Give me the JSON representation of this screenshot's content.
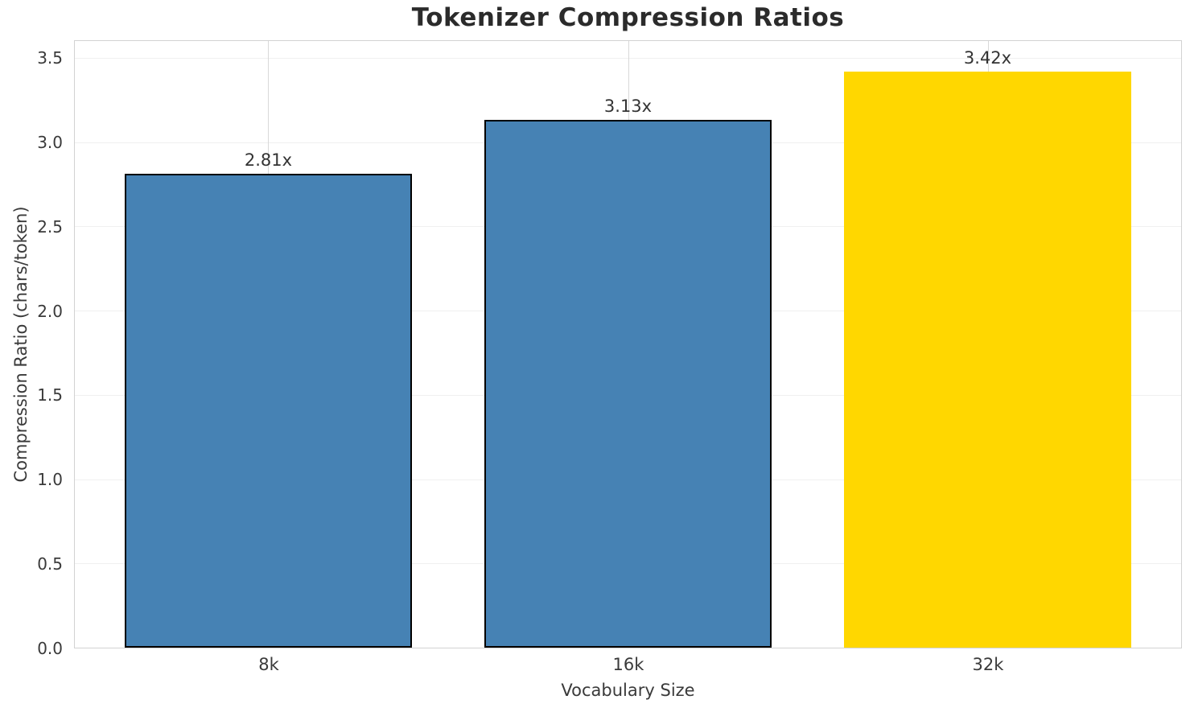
{
  "chart_data": {
    "type": "bar",
    "title": "Tokenizer Compression Ratios",
    "xlabel": "Vocabulary Size",
    "ylabel": "Compression Ratio (chars/token)",
    "categories": [
      "8k",
      "16k",
      "32k"
    ],
    "values": [
      2.81,
      3.13,
      3.42
    ],
    "bar_labels": [
      "2.81x",
      "3.13x",
      "3.42x"
    ],
    "bar_colors": [
      "#4682B4",
      "#4682B4",
      "#FFD700"
    ],
    "bar_edge_colors": [
      "#000000",
      "#000000",
      "#FFD700"
    ],
    "highlight_index": 2,
    "ylim": [
      0,
      3.6
    ],
    "yticks": [
      0,
      0.5,
      1,
      1.5,
      2,
      2.5,
      3,
      3.5
    ],
    "ytick_labels": [
      "0.0",
      "0.5",
      "1.0",
      "1.5",
      "2.0",
      "2.5",
      "3.0",
      "3.5"
    ],
    "grid": true,
    "legend": null,
    "colors": {
      "bar": "#4682B4",
      "highlight": "#FFD700",
      "bar_edge": "#000000",
      "spine": "#d2d2d2",
      "h_grid": "#f0f0f0",
      "v_grid": "#d8d8d8",
      "title_text": "#2b2b2b",
      "tick_text": "#3a3a3a"
    }
  }
}
